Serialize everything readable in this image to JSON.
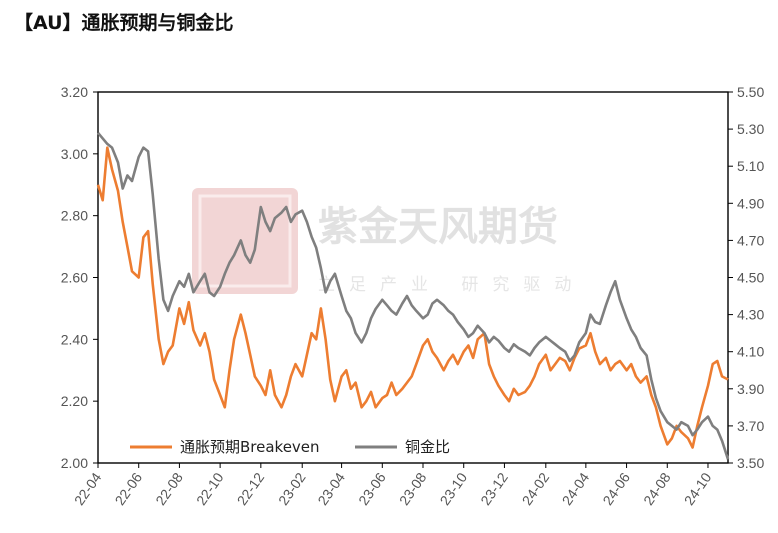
{
  "title": "【AU】通胀预期与铜金比",
  "watermark": {
    "brand": "紫金天风期货",
    "slogan": "立足产业 研究驱动",
    "seal_text": "紫金天风"
  },
  "colors": {
    "breakeven": "#ED7D31",
    "ratio": "#7F7F7F"
  },
  "chart_data": {
    "type": "line",
    "title": "",
    "x_tick_labels": [
      "22-04",
      "22-06",
      "22-08",
      "22-10",
      "22-12",
      "23-02",
      "23-04",
      "23-06",
      "23-08",
      "23-10",
      "23-12",
      "24-02",
      "24-04",
      "24-06",
      "24-08",
      "24-10"
    ],
    "x_range": [
      "2022-04-01",
      "2024-10-31"
    ],
    "y_left": {
      "label": "",
      "ylim": [
        2.0,
        3.2
      ],
      "ticks": [
        "2.00",
        "2.20",
        "2.40",
        "2.60",
        "2.80",
        "3.00",
        "3.20"
      ]
    },
    "y_right": {
      "label": "",
      "ylim": [
        3.5,
        5.5
      ],
      "ticks": [
        "3.50",
        "3.70",
        "3.90",
        "4.10",
        "4.30",
        "4.50",
        "4.70",
        "4.90",
        "5.10",
        "5.30",
        "5.50"
      ]
    },
    "legend": {
      "placement": "bottom-left"
    },
    "grid": false,
    "series": [
      {
        "name": "通胀预期Breakeven",
        "axis": "left",
        "color": "#ED7D31",
        "points": [
          [
            "2022-04-01",
            2.9
          ],
          [
            "2022-04-08",
            2.85
          ],
          [
            "2022-04-15",
            3.02
          ],
          [
            "2022-04-22",
            2.95
          ],
          [
            "2022-05-01",
            2.88
          ],
          [
            "2022-05-08",
            2.78
          ],
          [
            "2022-05-15",
            2.7
          ],
          [
            "2022-05-22",
            2.62
          ],
          [
            "2022-06-01",
            2.6
          ],
          [
            "2022-06-08",
            2.73
          ],
          [
            "2022-06-15",
            2.75
          ],
          [
            "2022-06-22",
            2.58
          ],
          [
            "2022-07-01",
            2.4
          ],
          [
            "2022-07-08",
            2.32
          ],
          [
            "2022-07-15",
            2.36
          ],
          [
            "2022-07-22",
            2.38
          ],
          [
            "2022-08-01",
            2.5
          ],
          [
            "2022-08-08",
            2.45
          ],
          [
            "2022-08-15",
            2.52
          ],
          [
            "2022-08-22",
            2.43
          ],
          [
            "2022-09-01",
            2.38
          ],
          [
            "2022-09-08",
            2.42
          ],
          [
            "2022-09-15",
            2.36
          ],
          [
            "2022-09-22",
            2.27
          ],
          [
            "2022-10-01",
            2.22
          ],
          [
            "2022-10-08",
            2.18
          ],
          [
            "2022-10-15",
            2.3
          ],
          [
            "2022-10-22",
            2.4
          ],
          [
            "2022-11-01",
            2.48
          ],
          [
            "2022-11-08",
            2.42
          ],
          [
            "2022-11-15",
            2.35
          ],
          [
            "2022-11-22",
            2.28
          ],
          [
            "2022-12-01",
            2.25
          ],
          [
            "2022-12-08",
            2.22
          ],
          [
            "2022-12-15",
            2.3
          ],
          [
            "2022-12-22",
            2.22
          ],
          [
            "2023-01-01",
            2.18
          ],
          [
            "2023-01-08",
            2.22
          ],
          [
            "2023-01-15",
            2.28
          ],
          [
            "2023-01-22",
            2.32
          ],
          [
            "2023-02-01",
            2.28
          ],
          [
            "2023-02-08",
            2.35
          ],
          [
            "2023-02-15",
            2.42
          ],
          [
            "2023-02-22",
            2.4
          ],
          [
            "2023-03-01",
            2.5
          ],
          [
            "2023-03-08",
            2.4
          ],
          [
            "2023-03-15",
            2.27
          ],
          [
            "2023-03-22",
            2.2
          ],
          [
            "2023-04-01",
            2.28
          ],
          [
            "2023-04-08",
            2.3
          ],
          [
            "2023-04-15",
            2.24
          ],
          [
            "2023-04-22",
            2.26
          ],
          [
            "2023-05-01",
            2.18
          ],
          [
            "2023-05-08",
            2.2
          ],
          [
            "2023-05-15",
            2.23
          ],
          [
            "2023-05-22",
            2.18
          ],
          [
            "2023-06-01",
            2.21
          ],
          [
            "2023-06-08",
            2.22
          ],
          [
            "2023-06-15",
            2.26
          ],
          [
            "2023-06-22",
            2.22
          ],
          [
            "2023-07-01",
            2.24
          ],
          [
            "2023-07-08",
            2.26
          ],
          [
            "2023-07-15",
            2.28
          ],
          [
            "2023-07-22",
            2.32
          ],
          [
            "2023-08-01",
            2.38
          ],
          [
            "2023-08-08",
            2.4
          ],
          [
            "2023-08-15",
            2.36
          ],
          [
            "2023-08-22",
            2.34
          ],
          [
            "2023-09-01",
            2.3
          ],
          [
            "2023-09-08",
            2.33
          ],
          [
            "2023-09-15",
            2.35
          ],
          [
            "2023-09-22",
            2.32
          ],
          [
            "2023-10-01",
            2.36
          ],
          [
            "2023-10-08",
            2.38
          ],
          [
            "2023-10-15",
            2.34
          ],
          [
            "2023-10-22",
            2.4
          ],
          [
            "2023-11-01",
            2.42
          ],
          [
            "2023-11-08",
            2.32
          ],
          [
            "2023-11-15",
            2.28
          ],
          [
            "2023-11-22",
            2.25
          ],
          [
            "2023-12-01",
            2.22
          ],
          [
            "2023-12-08",
            2.2
          ],
          [
            "2023-12-15",
            2.24
          ],
          [
            "2023-12-22",
            2.22
          ],
          [
            "2024-01-01",
            2.23
          ],
          [
            "2024-01-08",
            2.25
          ],
          [
            "2024-01-15",
            2.28
          ],
          [
            "2024-01-22",
            2.32
          ],
          [
            "2024-02-01",
            2.35
          ],
          [
            "2024-02-08",
            2.3
          ],
          [
            "2024-02-15",
            2.32
          ],
          [
            "2024-02-22",
            2.34
          ],
          [
            "2024-03-01",
            2.33
          ],
          [
            "2024-03-08",
            2.3
          ],
          [
            "2024-03-15",
            2.34
          ],
          [
            "2024-03-22",
            2.37
          ],
          [
            "2024-04-01",
            2.38
          ],
          [
            "2024-04-08",
            2.42
          ],
          [
            "2024-04-15",
            2.36
          ],
          [
            "2024-04-22",
            2.32
          ],
          [
            "2024-05-01",
            2.34
          ],
          [
            "2024-05-08",
            2.3
          ],
          [
            "2024-05-15",
            2.32
          ],
          [
            "2024-05-22",
            2.33
          ],
          [
            "2024-06-01",
            2.3
          ],
          [
            "2024-06-08",
            2.32
          ],
          [
            "2024-06-15",
            2.28
          ],
          [
            "2024-06-22",
            2.26
          ],
          [
            "2024-07-01",
            2.28
          ],
          [
            "2024-07-08",
            2.22
          ],
          [
            "2024-07-15",
            2.18
          ],
          [
            "2024-07-22",
            2.12
          ],
          [
            "2024-08-01",
            2.06
          ],
          [
            "2024-08-08",
            2.08
          ],
          [
            "2024-08-15",
            2.12
          ],
          [
            "2024-08-22",
            2.1
          ],
          [
            "2024-09-01",
            2.08
          ],
          [
            "2024-09-08",
            2.05
          ],
          [
            "2024-09-15",
            2.12
          ],
          [
            "2024-09-22",
            2.18
          ],
          [
            "2024-10-01",
            2.25
          ],
          [
            "2024-10-08",
            2.32
          ],
          [
            "2024-10-15",
            2.33
          ],
          [
            "2024-10-22",
            2.28
          ],
          [
            "2024-10-31",
            2.27
          ]
        ]
      },
      {
        "name": "铜金比",
        "axis": "right",
        "color": "#7F7F7F",
        "points": [
          [
            "2022-04-01",
            5.28
          ],
          [
            "2022-04-08",
            5.25
          ],
          [
            "2022-04-15",
            5.22
          ],
          [
            "2022-04-22",
            5.2
          ],
          [
            "2022-05-01",
            5.12
          ],
          [
            "2022-05-08",
            4.98
          ],
          [
            "2022-05-15",
            5.05
          ],
          [
            "2022-05-22",
            5.02
          ],
          [
            "2022-06-01",
            5.15
          ],
          [
            "2022-06-08",
            5.2
          ],
          [
            "2022-06-15",
            5.18
          ],
          [
            "2022-06-22",
            4.95
          ],
          [
            "2022-07-01",
            4.6
          ],
          [
            "2022-07-08",
            4.38
          ],
          [
            "2022-07-15",
            4.32
          ],
          [
            "2022-07-22",
            4.4
          ],
          [
            "2022-08-01",
            4.48
          ],
          [
            "2022-08-08",
            4.45
          ],
          [
            "2022-08-15",
            4.52
          ],
          [
            "2022-08-22",
            4.42
          ],
          [
            "2022-09-01",
            4.48
          ],
          [
            "2022-09-08",
            4.52
          ],
          [
            "2022-09-15",
            4.42
          ],
          [
            "2022-09-22",
            4.4
          ],
          [
            "2022-10-01",
            4.45
          ],
          [
            "2022-10-08",
            4.52
          ],
          [
            "2022-10-15",
            4.58
          ],
          [
            "2022-10-22",
            4.62
          ],
          [
            "2022-11-01",
            4.7
          ],
          [
            "2022-11-08",
            4.62
          ],
          [
            "2022-11-15",
            4.58
          ],
          [
            "2022-11-22",
            4.65
          ],
          [
            "2022-12-01",
            4.88
          ],
          [
            "2022-12-08",
            4.8
          ],
          [
            "2022-12-15",
            4.75
          ],
          [
            "2022-12-22",
            4.82
          ],
          [
            "2023-01-01",
            4.85
          ],
          [
            "2023-01-08",
            4.88
          ],
          [
            "2023-01-15",
            4.8
          ],
          [
            "2023-01-22",
            4.84
          ],
          [
            "2023-02-01",
            4.86
          ],
          [
            "2023-02-08",
            4.8
          ],
          [
            "2023-02-15",
            4.72
          ],
          [
            "2023-02-22",
            4.66
          ],
          [
            "2023-03-01",
            4.55
          ],
          [
            "2023-03-08",
            4.42
          ],
          [
            "2023-03-15",
            4.48
          ],
          [
            "2023-03-22",
            4.52
          ],
          [
            "2023-04-01",
            4.4
          ],
          [
            "2023-04-08",
            4.32
          ],
          [
            "2023-04-15",
            4.28
          ],
          [
            "2023-04-22",
            4.2
          ],
          [
            "2023-05-01",
            4.15
          ],
          [
            "2023-05-08",
            4.2
          ],
          [
            "2023-05-15",
            4.28
          ],
          [
            "2023-05-22",
            4.33
          ],
          [
            "2023-06-01",
            4.38
          ],
          [
            "2023-06-08",
            4.35
          ],
          [
            "2023-06-15",
            4.32
          ],
          [
            "2023-06-22",
            4.3
          ],
          [
            "2023-07-01",
            4.36
          ],
          [
            "2023-07-08",
            4.4
          ],
          [
            "2023-07-15",
            4.35
          ],
          [
            "2023-07-22",
            4.32
          ],
          [
            "2023-08-01",
            4.28
          ],
          [
            "2023-08-08",
            4.3
          ],
          [
            "2023-08-15",
            4.36
          ],
          [
            "2023-08-22",
            4.38
          ],
          [
            "2023-09-01",
            4.35
          ],
          [
            "2023-09-08",
            4.32
          ],
          [
            "2023-09-15",
            4.3
          ],
          [
            "2023-09-22",
            4.26
          ],
          [
            "2023-10-01",
            4.22
          ],
          [
            "2023-10-08",
            4.18
          ],
          [
            "2023-10-15",
            4.2
          ],
          [
            "2023-10-22",
            4.24
          ],
          [
            "2023-11-01",
            4.2
          ],
          [
            "2023-11-08",
            4.15
          ],
          [
            "2023-11-15",
            4.18
          ],
          [
            "2023-11-22",
            4.16
          ],
          [
            "2023-12-01",
            4.12
          ],
          [
            "2023-12-08",
            4.1
          ],
          [
            "2023-12-15",
            4.14
          ],
          [
            "2023-12-22",
            4.12
          ],
          [
            "2024-01-01",
            4.1
          ],
          [
            "2024-01-08",
            4.08
          ],
          [
            "2024-01-15",
            4.12
          ],
          [
            "2024-01-22",
            4.15
          ],
          [
            "2024-02-01",
            4.18
          ],
          [
            "2024-02-08",
            4.16
          ],
          [
            "2024-02-15",
            4.14
          ],
          [
            "2024-02-22",
            4.12
          ],
          [
            "2024-03-01",
            4.1
          ],
          [
            "2024-03-08",
            4.05
          ],
          [
            "2024-03-15",
            4.08
          ],
          [
            "2024-03-22",
            4.15
          ],
          [
            "2024-04-01",
            4.2
          ],
          [
            "2024-04-08",
            4.3
          ],
          [
            "2024-04-15",
            4.26
          ],
          [
            "2024-04-22",
            4.25
          ],
          [
            "2024-05-01",
            4.35
          ],
          [
            "2024-05-08",
            4.42
          ],
          [
            "2024-05-15",
            4.48
          ],
          [
            "2024-05-22",
            4.38
          ],
          [
            "2024-06-01",
            4.28
          ],
          [
            "2024-06-08",
            4.22
          ],
          [
            "2024-06-15",
            4.18
          ],
          [
            "2024-06-22",
            4.12
          ],
          [
            "2024-07-01",
            4.08
          ],
          [
            "2024-07-08",
            3.95
          ],
          [
            "2024-07-15",
            3.85
          ],
          [
            "2024-07-22",
            3.78
          ],
          [
            "2024-08-01",
            3.72
          ],
          [
            "2024-08-08",
            3.7
          ],
          [
            "2024-08-15",
            3.68
          ],
          [
            "2024-08-22",
            3.72
          ],
          [
            "2024-09-01",
            3.7
          ],
          [
            "2024-09-08",
            3.65
          ],
          [
            "2024-09-15",
            3.68
          ],
          [
            "2024-09-22",
            3.72
          ],
          [
            "2024-10-01",
            3.75
          ],
          [
            "2024-10-08",
            3.7
          ],
          [
            "2024-10-15",
            3.68
          ],
          [
            "2024-10-22",
            3.62
          ],
          [
            "2024-10-31",
            3.52
          ]
        ]
      }
    ]
  }
}
